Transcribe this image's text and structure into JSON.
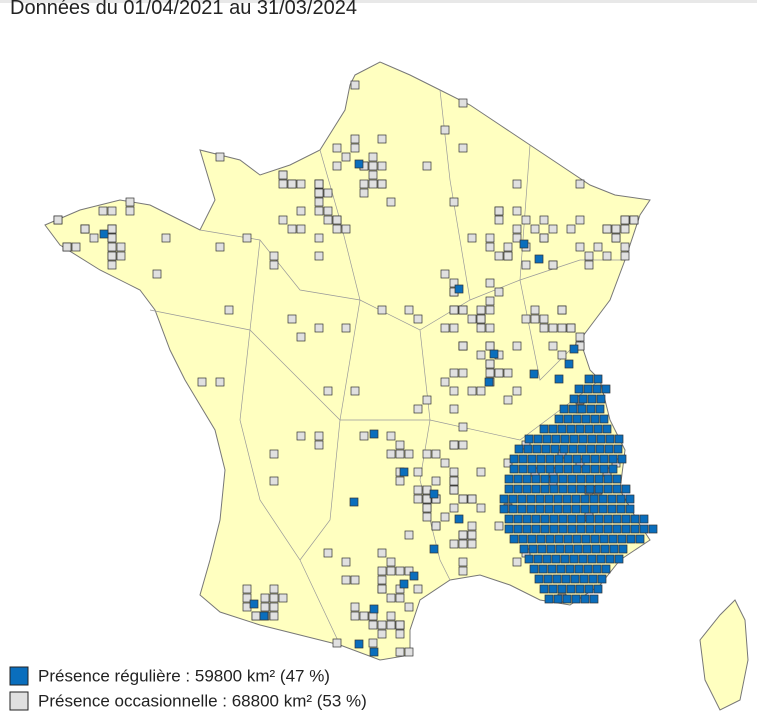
{
  "header": {
    "title": "Données du 01/04/2021 au 31/03/2024"
  },
  "legend": {
    "items": [
      {
        "label": "Présence régulière : 59800 km² (47 %)",
        "color": "#0a6ebd"
      },
      {
        "label": "Présence occasionnelle : 68800 km² (53 %)",
        "color": "#e0e0e0"
      }
    ]
  }
}
